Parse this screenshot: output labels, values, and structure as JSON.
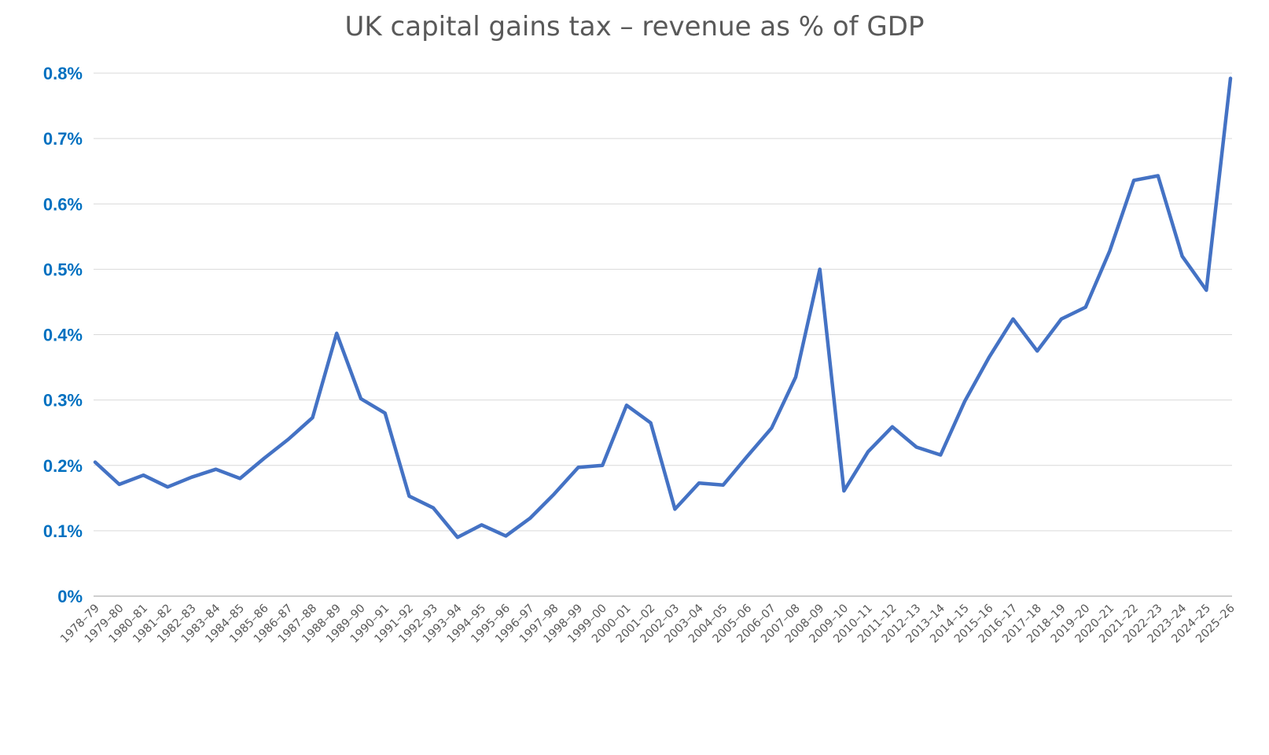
{
  "chart_data": {
    "type": "line",
    "title": "UK capital gains tax – revenue as % of GDP",
    "xlabel": "",
    "ylabel": "",
    "ylim": [
      0,
      0.8
    ],
    "y_ticks": [
      0,
      0.1,
      0.2,
      0.3,
      0.4,
      0.5,
      0.6,
      0.7,
      0.8
    ],
    "y_tick_labels": [
      "0%",
      "0.1%",
      "0.2%",
      "0.3%",
      "0.4%",
      "0.5%",
      "0.6%",
      "0.7%",
      "0.8%"
    ],
    "grid": true,
    "legend": "none",
    "categories": [
      "1978–79",
      "1979–80",
      "1980–81",
      "1981–82",
      "1982–83",
      "1983–84",
      "1984–85",
      "1985–86",
      "1986–87",
      "1987–88",
      "1988–89",
      "1989–90",
      "1990–91",
      "1991–92",
      "1992–93",
      "1993–94",
      "1994–95",
      "1995–96",
      "1996–97",
      "1997–98",
      "1998–99",
      "1999–00",
      "2000–01",
      "2001–02",
      "2002–03",
      "2003–04",
      "2004–05",
      "2005–06",
      "2006–07",
      "2007–08",
      "2008–09",
      "2009–10",
      "2010–11",
      "2011–12",
      "2012–13",
      "2013–14",
      "2014–15",
      "2015–16",
      "2016–17",
      "2017–18",
      "2018–19",
      "2019–20",
      "2020–21",
      "2021–22",
      "2022–23",
      "2023–24",
      "2024–25",
      "2025–26"
    ],
    "series": [
      {
        "color": "#4472C4",
        "values": [
          0.205,
          0.171,
          0.185,
          0.167,
          0.182,
          0.194,
          0.18,
          0.211,
          0.24,
          0.273,
          0.402,
          0.302,
          0.28,
          0.153,
          0.135,
          0.09,
          0.109,
          0.092,
          0.119,
          0.156,
          0.197,
          0.2,
          0.292,
          0.265,
          0.133,
          0.173,
          0.17,
          0.214,
          0.257,
          0.335,
          0.5,
          0.161,
          0.221,
          0.259,
          0.228,
          0.216,
          0.298,
          0.365,
          0.424,
          0.375,
          0.424,
          0.442,
          0.528,
          0.636,
          0.643,
          0.52,
          0.468,
          0.792
        ]
      }
    ]
  }
}
